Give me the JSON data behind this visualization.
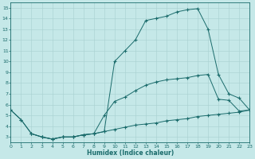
{
  "xlabel": "Humidex (Indice chaleur)",
  "xlim": [
    0,
    23
  ],
  "ylim": [
    2.5,
    15.5
  ],
  "xticks": [
    0,
    1,
    2,
    3,
    4,
    5,
    6,
    7,
    8,
    9,
    10,
    11,
    12,
    13,
    14,
    15,
    16,
    17,
    18,
    19,
    20,
    21,
    22,
    23
  ],
  "yticks": [
    3,
    4,
    5,
    6,
    7,
    8,
    9,
    10,
    11,
    12,
    13,
    14,
    15
  ],
  "bg_color": "#c5e8e8",
  "line_color": "#1a6b6b",
  "line1_x": [
    0,
    1,
    2,
    3,
    4,
    5,
    6,
    7,
    8,
    9,
    10,
    11,
    12,
    13,
    14,
    15,
    16,
    17,
    18,
    19,
    20,
    21,
    22,
    23
  ],
  "line1_y": [
    5.5,
    4.6,
    3.3,
    3.0,
    2.8,
    3.0,
    3.0,
    3.2,
    3.3,
    5.0,
    6.3,
    6.7,
    7.3,
    7.8,
    8.1,
    8.3,
    8.4,
    8.5,
    8.7,
    8.8,
    6.5,
    6.4,
    5.4,
    5.5
  ],
  "line2_x": [
    0,
    1,
    2,
    3,
    4,
    5,
    6,
    7,
    8,
    9,
    10,
    11,
    12,
    13,
    14,
    15,
    16,
    17,
    18,
    19,
    20,
    21,
    22,
    23
  ],
  "line2_y": [
    5.5,
    4.6,
    3.3,
    3.0,
    2.8,
    3.0,
    3.0,
    3.2,
    3.3,
    3.5,
    3.7,
    3.9,
    4.1,
    4.2,
    4.3,
    4.5,
    4.6,
    4.7,
    4.9,
    5.0,
    5.1,
    5.2,
    5.3,
    5.5
  ],
  "line3_x": [
    2,
    3,
    4,
    5,
    6,
    7,
    8,
    9,
    10,
    11,
    12,
    13,
    14,
    15,
    16,
    17,
    18,
    19,
    20,
    21,
    22,
    23
  ],
  "line3_y": [
    3.3,
    3.0,
    2.8,
    3.0,
    3.0,
    3.2,
    3.3,
    3.5,
    10.0,
    11.0,
    12.0,
    13.8,
    14.0,
    14.2,
    14.6,
    14.8,
    14.9,
    13.0,
    8.8,
    7.0,
    6.6,
    5.5
  ]
}
